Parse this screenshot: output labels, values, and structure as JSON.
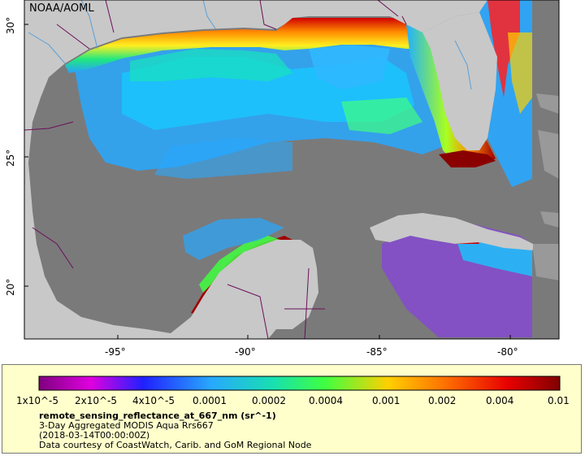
{
  "map": {
    "credit": "NOAA/AOML",
    "lat_labels": [
      "30°",
      "25°",
      "20°"
    ],
    "lon_labels": [
      "-95°",
      "-90°",
      "-85°",
      "-80°"
    ],
    "colors": {
      "land": "#c8c8c8",
      "no_data": "#7a7a7a",
      "boundary": "#6b0f5a",
      "river": "#5aa0d8"
    }
  },
  "legend": {
    "colorbar_labels": [
      "1x10^-5",
      "2x10^-5",
      "4x10^-5",
      "0.0001",
      "0.0002",
      "0.0004",
      "0.001",
      "0.002",
      "0.004",
      "0.01"
    ],
    "variable": "remote_sensing_reflectance_at_667_nm (sr^-1)",
    "product": "3-Day Aggregated MODIS Aqua Rrs667",
    "timestamp": "(2018-03-14T00:00:00Z)",
    "credit": "Data courtesy of CoastWatch, Carib. and GoM Regional Node"
  }
}
